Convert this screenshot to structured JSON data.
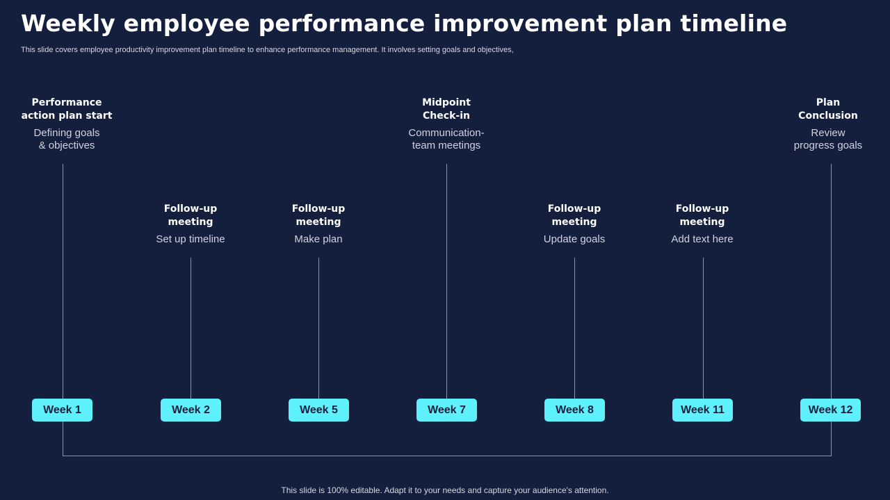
{
  "header": {
    "title": "Weekly employee performance improvement plan timeline",
    "subtitle": "This slide covers employee productivity improvement plan timeline to enhance performance management. It involves setting goals and objectives,"
  },
  "milestones": [
    {
      "week": "Week 1",
      "heading": "Performance\naction plan start",
      "description": "Defining goals\n& objectives"
    },
    {
      "week": "Week 2",
      "heading": "Follow-up\nmeeting",
      "description": "Set up timeline"
    },
    {
      "week": "Week 5",
      "heading": "Follow-up\nmeeting",
      "description": "Make plan"
    },
    {
      "week": "Week 7",
      "heading": "Midpoint\nCheck-in",
      "description": "Communication-\nteam meetings"
    },
    {
      "week": "Week 8",
      "heading": "Follow-up\nmeeting",
      "description": "Update goals"
    },
    {
      "week": "Week 11",
      "heading": "Follow-up\nmeeting",
      "description": "Add text here"
    },
    {
      "week": "Week 12",
      "heading": "Plan\nConclusion",
      "description": "Review\nprogress goals"
    }
  ],
  "footer": {
    "note": "This slide is 100% editable. Adapt it to your needs and capture your audience's attention."
  },
  "colors": {
    "background": "#141e3d",
    "week_badge": "#5ef0fb",
    "connector": "#8a93ad"
  }
}
